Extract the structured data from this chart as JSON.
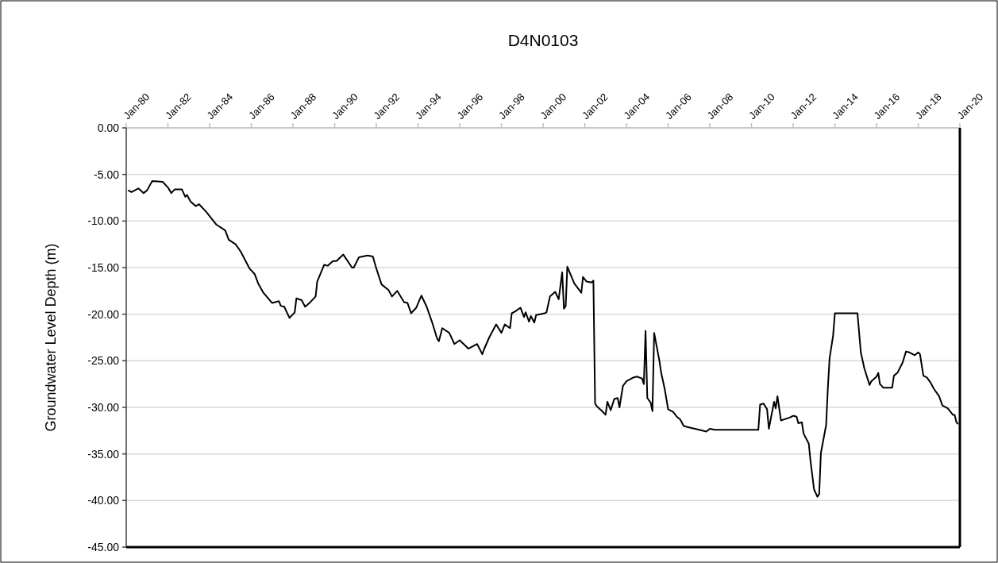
{
  "chart_data": {
    "type": "line",
    "title": "D4N0103",
    "ylabel": "Groundwater Level Depth (m)",
    "xlim": [
      "1980-01",
      "2020-01"
    ],
    "xticks": [
      {
        "value": "1980-01",
        "label": "Jan-80"
      },
      {
        "value": "1982-01",
        "label": "Jan-82"
      },
      {
        "value": "1984-01",
        "label": "Jan-84"
      },
      {
        "value": "1986-01",
        "label": "Jan-86"
      },
      {
        "value": "1988-01",
        "label": "Jan-88"
      },
      {
        "value": "1990-01",
        "label": "Jan-90"
      },
      {
        "value": "1992-01",
        "label": "Jan-92"
      },
      {
        "value": "1994-01",
        "label": "Jan-94"
      },
      {
        "value": "1996-01",
        "label": "Jan-96"
      },
      {
        "value": "1998-01",
        "label": "Jan-98"
      },
      {
        "value": "2000-01",
        "label": "Jan-00"
      },
      {
        "value": "2002-01",
        "label": "Jan-02"
      },
      {
        "value": "2004-01",
        "label": "Jan-04"
      },
      {
        "value": "2006-01",
        "label": "Jan-06"
      },
      {
        "value": "2008-01",
        "label": "Jan-08"
      },
      {
        "value": "2010-01",
        "label": "Jan-10"
      },
      {
        "value": "2012-01",
        "label": "Jan-12"
      },
      {
        "value": "2014-01",
        "label": "Jan-14"
      },
      {
        "value": "2016-01",
        "label": "Jan-16"
      },
      {
        "value": "2018-01",
        "label": "Jan-18"
      },
      {
        "value": "2020-01",
        "label": "Jan-20"
      }
    ],
    "ylim": [
      -45,
      0
    ],
    "yticks": [
      {
        "value": 0,
        "label": "0.00"
      },
      {
        "value": -5,
        "label": "-5.00"
      },
      {
        "value": -10,
        "label": "-10.00"
      },
      {
        "value": -15,
        "label": "-15.00"
      },
      {
        "value": -20,
        "label": "-20.00"
      },
      {
        "value": -25,
        "label": "-25.00"
      },
      {
        "value": -30,
        "label": "-30.00"
      },
      {
        "value": -35,
        "label": "-35.00"
      },
      {
        "value": -40,
        "label": "-40.00"
      },
      {
        "value": -45,
        "label": "-45.00"
      }
    ],
    "grid": "y",
    "marker": "none",
    "line_style": "solid",
    "x": [
      "1980-02",
      "1980-04",
      "1980-08",
      "1980-11",
      "1981-01",
      "1981-04",
      "1981-10",
      "1982-01",
      "1982-03",
      "1982-05",
      "1982-09",
      "1982-11",
      "1982-12",
      "1983-02",
      "1983-05",
      "1983-07",
      "1983-11",
      "1984-05",
      "1984-10",
      "1984-12",
      "1985-04",
      "1985-07",
      "1985-12",
      "1986-03",
      "1986-05",
      "1986-08",
      "1987-01",
      "1987-05",
      "1987-06",
      "1987-08",
      "1987-11",
      "1988-02",
      "1988-03",
      "1988-06",
      "1988-08",
      "1988-11",
      "1989-02",
      "1989-03",
      "1989-07",
      "1989-09",
      "1989-12",
      "1990-02",
      "1990-06",
      "1990-11",
      "1990-12",
      "1991-03",
      "1991-08",
      "1991-11",
      "1992-01",
      "1992-04",
      "1992-08",
      "1992-10",
      "1993-01",
      "1993-05",
      "1993-07",
      "1993-09",
      "1993-12",
      "1994-03",
      "1994-06",
      "1994-09",
      "1994-12",
      "1995-01",
      "1995-03",
      "1995-07",
      "1995-10",
      "1996-01",
      "1996-06",
      "1996-11",
      "1997-02",
      "1997-03",
      "1997-06",
      "1997-10",
      "1998-01",
      "1998-03",
      "1998-06",
      "1998-07",
      "1998-09",
      "1998-12",
      "1999-02",
      "1999-03",
      "1999-05",
      "1999-06",
      "1999-08",
      "1999-09",
      "2000-02",
      "2000-03",
      "2000-05",
      "2000-08",
      "2000-10",
      "2000-12",
      "2001-01",
      "2001-02",
      "2001-03",
      "2001-07",
      "2001-11",
      "2001-12",
      "2002-02",
      "2002-05",
      "2002-06",
      "2002-07",
      "2002-08",
      "2002-11",
      "2003-01",
      "2003-02",
      "2003-04",
      "2003-06",
      "2003-08",
      "2003-09",
      "2003-11",
      "2004-01",
      "2004-05",
      "2004-07",
      "2004-10",
      "2004-11",
      "2004-12",
      "2005-01",
      "2005-03",
      "2005-04",
      "2005-05",
      "2005-07",
      "2005-08",
      "2005-09",
      "2005-11",
      "2006-01",
      "2006-04",
      "2006-06",
      "2006-08",
      "2006-10",
      "2007-02",
      "2007-07",
      "2007-11",
      "2008-01",
      "2008-04",
      "2010-05",
      "2010-06",
      "2010-08",
      "2010-10",
      "2010-11",
      "2011-02",
      "2011-03",
      "2011-04",
      "2011-06",
      "2011-11",
      "2012-01",
      "2012-03",
      "2012-04",
      "2012-06",
      "2012-07",
      "2012-10",
      "2012-11",
      "2013-01",
      "2013-03",
      "2013-04",
      "2013-05",
      "2013-08",
      "2013-09",
      "2013-10",
      "2013-12",
      "2014-01",
      "2015-02",
      "2015-04",
      "2015-06",
      "2015-09",
      "2015-10",
      "2016-01",
      "2016-02",
      "2016-03",
      "2016-05",
      "2016-10",
      "2016-11",
      "2017-01",
      "2017-04",
      "2017-06",
      "2017-08",
      "2017-11",
      "2018-01",
      "2018-02",
      "2018-04",
      "2018-06",
      "2018-08",
      "2018-10",
      "2019-01",
      "2019-03",
      "2019-06",
      "2019-09",
      "2019-10",
      "2019-11",
      "2019-12"
    ],
    "series": [
      {
        "color": "#000000",
        "values": [
          -6.7,
          -6.9,
          -6.5,
          -7.0,
          -6.7,
          -5.7,
          -5.8,
          -6.4,
          -7.0,
          -6.6,
          -6.6,
          -7.4,
          -7.2,
          -7.9,
          -8.4,
          -8.2,
          -9.0,
          -10.4,
          -11.0,
          -12.0,
          -12.5,
          -13.3,
          -15.1,
          -15.7,
          -16.7,
          -17.7,
          -18.8,
          -18.6,
          -19.1,
          -19.2,
          -20.4,
          -19.8,
          -18.3,
          -18.5,
          -19.2,
          -18.7,
          -18.1,
          -16.5,
          -14.7,
          -14.8,
          -14.3,
          -14.3,
          -13.6,
          -15.0,
          -15.0,
          -13.9,
          -13.7,
          -13.8,
          -15.1,
          -16.8,
          -17.4,
          -18.1,
          -17.5,
          -18.7,
          -18.8,
          -19.9,
          -19.3,
          -18.0,
          -19.2,
          -20.8,
          -22.6,
          -22.9,
          -21.5,
          -22.0,
          -23.2,
          -22.8,
          -23.7,
          -23.2,
          -24.3,
          -23.8,
          -22.5,
          -21.1,
          -22.0,
          -21.1,
          -21.5,
          -19.9,
          -19.7,
          -19.3,
          -20.3,
          -19.8,
          -20.8,
          -20.2,
          -20.9,
          -20.1,
          -19.9,
          -19.8,
          -18.1,
          -17.6,
          -18.4,
          -15.5,
          -19.4,
          -19.1,
          -14.9,
          -16.7,
          -17.7,
          -16.0,
          -16.5,
          -16.6,
          -16.4,
          -29.6,
          -29.9,
          -30.4,
          -30.8,
          -29.4,
          -30.3,
          -29.1,
          -29.0,
          -30.0,
          -27.7,
          -27.2,
          -26.8,
          -26.7,
          -26.9,
          -27.5,
          -21.8,
          -29.0,
          -29.5,
          -30.4,
          -22.0,
          -24.0,
          -25.0,
          -26.3,
          -28.0,
          -30.2,
          -30.5,
          -31.0,
          -31.3,
          -32.0,
          -32.2,
          -32.4,
          -32.6,
          -32.3,
          -32.4,
          -32.4,
          -29.7,
          -29.6,
          -30.2,
          -32.3,
          -29.4,
          -30.1,
          -28.8,
          -31.4,
          -31.1,
          -30.9,
          -31.0,
          -31.7,
          -31.6,
          -32.8,
          -33.9,
          -35.8,
          -38.8,
          -39.6,
          -39.3,
          -34.9,
          -31.9,
          -27.8,
          -24.7,
          -22.3,
          -19.9,
          -19.9,
          -24.1,
          -25.8,
          -27.6,
          -27.2,
          -26.7,
          -26.3,
          -27.5,
          -27.9,
          -27.9,
          -26.6,
          -26.3,
          -25.2,
          -24.0,
          -24.1,
          -24.4,
          -24.1,
          -24.3,
          -26.6,
          -26.8,
          -27.3,
          -28.0,
          -28.8,
          -29.8,
          -30.1,
          -30.8,
          -30.8,
          -31.6,
          -31.8
        ]
      }
    ]
  }
}
